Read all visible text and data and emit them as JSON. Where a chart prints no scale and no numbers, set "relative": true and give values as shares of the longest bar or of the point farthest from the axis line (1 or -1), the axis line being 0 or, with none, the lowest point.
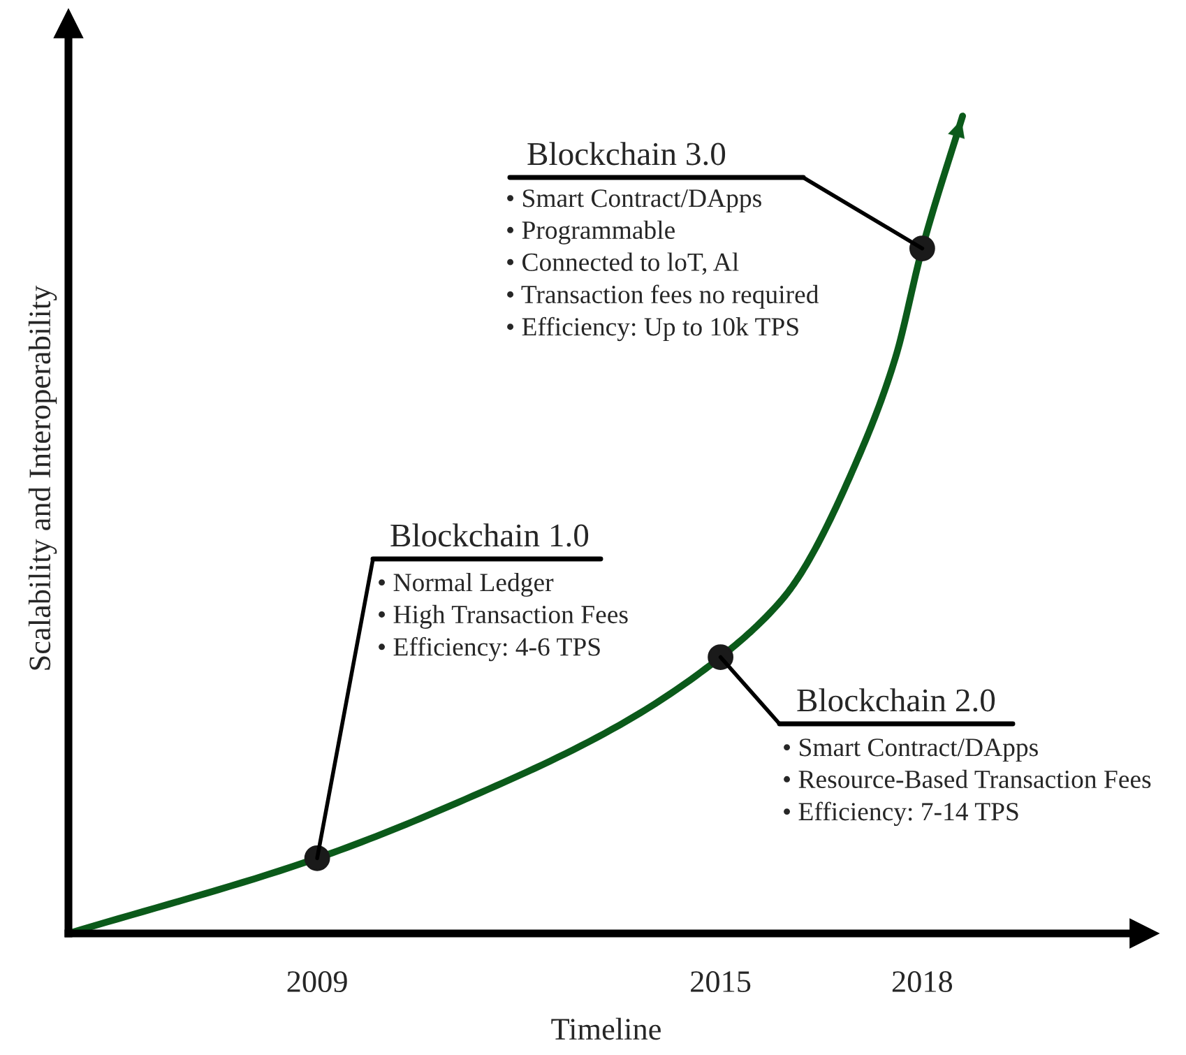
{
  "chart_data": {
    "type": "line",
    "relative": true,
    "xlabel": "Timeline",
    "ylabel": "Scalability and Interoperability",
    "xlim": [
      2005.3,
      2021.3
    ],
    "xticks": [
      2009,
      2015,
      2018
    ],
    "tick_labels": "x",
    "grid": false,
    "legend": false,
    "line_style": "solid",
    "series": [
      {
        "color": "#0b5a1a",
        "x": [
          2005.3,
          2009,
          2011.2,
          2013.5,
          2015,
          2015.9,
          2016.2,
          2017.0,
          2017.6,
          2018,
          2018.6
        ],
        "values": [
          0,
          0.092,
          0.164,
          0.255,
          0.338,
          0.407,
          0.441,
          0.573,
          0.704,
          0.838,
          1
        ]
      },
      {
        "type": "scatter",
        "marker": "circle",
        "color": "#1a1a1a",
        "x": [
          2009,
          2015,
          2018
        ],
        "values": [
          0.092,
          0.338,
          0.838
        ]
      }
    ],
    "annotations": [
      {
        "text": "Blockchain 1.0\n• Normal Ledger\n• High Transaction Fees\n• Efficiency: 4-6 TPS",
        "x": 2009,
        "y": 0.092
      },
      {
        "text": "Blockchain 2.0\n• Smart Contract/DApps\n• Resource-Based Transaction Fees\n• Efficiency: 7-14 TPS",
        "x": 2015,
        "y": 0.338
      },
      {
        "text": "Blockchain 3.0\n• Smart Contract/DApps\n• Programmable\n• Connected to loT, Al\n• Transaction fees no required\n• Efficiency: Up to 10k TPS",
        "x": 2018,
        "y": 0.838
      }
    ]
  }
}
